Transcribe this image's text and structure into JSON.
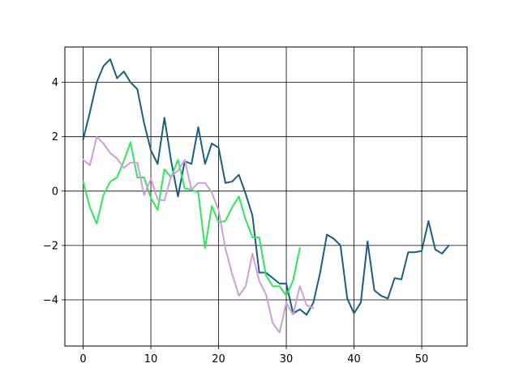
{
  "chart_data": {
    "type": "line",
    "title": "",
    "xlabel": "",
    "ylabel": "",
    "xlim": [
      -2.7,
      56.7
    ],
    "ylim": [
      -5.7,
      5.3
    ],
    "grid": true,
    "xticks": [
      0,
      10,
      20,
      30,
      40,
      50
    ],
    "yticks": [
      -4,
      -2,
      0,
      2,
      4
    ],
    "xtick_labels": [
      "0",
      "10",
      "20",
      "30",
      "40",
      "50"
    ],
    "ytick_labels": [
      "−4",
      "−2",
      "0",
      "2",
      "4"
    ],
    "series": [
      {
        "color": "#1a5d85",
        "x": [
          0,
          1,
          2,
          3,
          4,
          5,
          6,
          7,
          8,
          9,
          10,
          11,
          12,
          13,
          14,
          15,
          16,
          17,
          18,
          19,
          20,
          21,
          22,
          23,
          24,
          25,
          26,
          27,
          28,
          29,
          30,
          31,
          32,
          33,
          34,
          35,
          36,
          37,
          38,
          39,
          40,
          41,
          42,
          43,
          44,
          45,
          46,
          47,
          48,
          49,
          50,
          51,
          52,
          53,
          54
        ],
        "values": [
          1.9,
          2.9,
          4.0,
          4.6,
          4.85,
          4.15,
          4.4,
          4.0,
          3.75,
          2.5,
          1.5,
          1.0,
          2.7,
          1.1,
          -0.2,
          1.1,
          1.0,
          2.35,
          1.0,
          1.75,
          1.6,
          0.3,
          0.35,
          0.6,
          -0.1,
          -0.9,
          -3.0,
          -3.0,
          -3.2,
          -3.4,
          -3.4,
          -4.5,
          -4.35,
          -4.55,
          -4.1,
          -3.0,
          -1.6,
          -1.75,
          -2.0,
          -3.95,
          -4.5,
          -4.1,
          -1.85,
          -3.65,
          -3.85,
          -3.95,
          -3.2,
          -3.25,
          -2.25,
          -2.25,
          -2.2,
          -1.1,
          -2.15,
          -2.3,
          -2.0
        ]
      },
      {
        "color": "#2ee85a",
        "x": [
          0,
          1,
          2,
          3,
          4,
          5,
          6,
          7,
          8,
          9,
          10,
          11,
          12,
          13,
          14,
          15,
          16,
          17,
          18,
          19,
          20,
          21,
          22,
          23,
          24,
          25,
          26,
          27,
          28,
          29,
          30,
          31,
          32
        ],
        "values": [
          0.35,
          -0.6,
          -1.2,
          -0.15,
          0.35,
          0.5,
          1.1,
          1.8,
          0.5,
          0.5,
          -0.25,
          -0.7,
          0.8,
          0.5,
          1.15,
          0.1,
          0.05,
          -0.05,
          -2.1,
          -0.55,
          -1.15,
          -1.1,
          -0.6,
          -0.2,
          -1.05,
          -1.7,
          -1.7,
          -3.1,
          -3.5,
          -3.5,
          -3.85,
          -3.3,
          -2.1
        ]
      },
      {
        "color": "#cc9fd6",
        "x": [
          0,
          1,
          2,
          3,
          4,
          5,
          6,
          7,
          8,
          9,
          10,
          11,
          12,
          13,
          14,
          15,
          16,
          17,
          18,
          19,
          20,
          21,
          22,
          23,
          24,
          25,
          26,
          27,
          28,
          29,
          30,
          31,
          32,
          33,
          34
        ],
        "values": [
          1.15,
          0.95,
          2.0,
          1.75,
          1.4,
          1.2,
          0.85,
          1.05,
          1.05,
          -0.15,
          0.45,
          -0.3,
          -0.35,
          0.55,
          0.75,
          1.15,
          0.05,
          0.3,
          0.3,
          -0.05,
          -0.7,
          -2.1,
          -3.05,
          -3.85,
          -3.5,
          -2.3,
          -3.3,
          -3.8,
          -4.85,
          -5.2,
          -4.1,
          -4.55,
          -3.5,
          -4.2,
          -4.3
        ]
      }
    ]
  }
}
